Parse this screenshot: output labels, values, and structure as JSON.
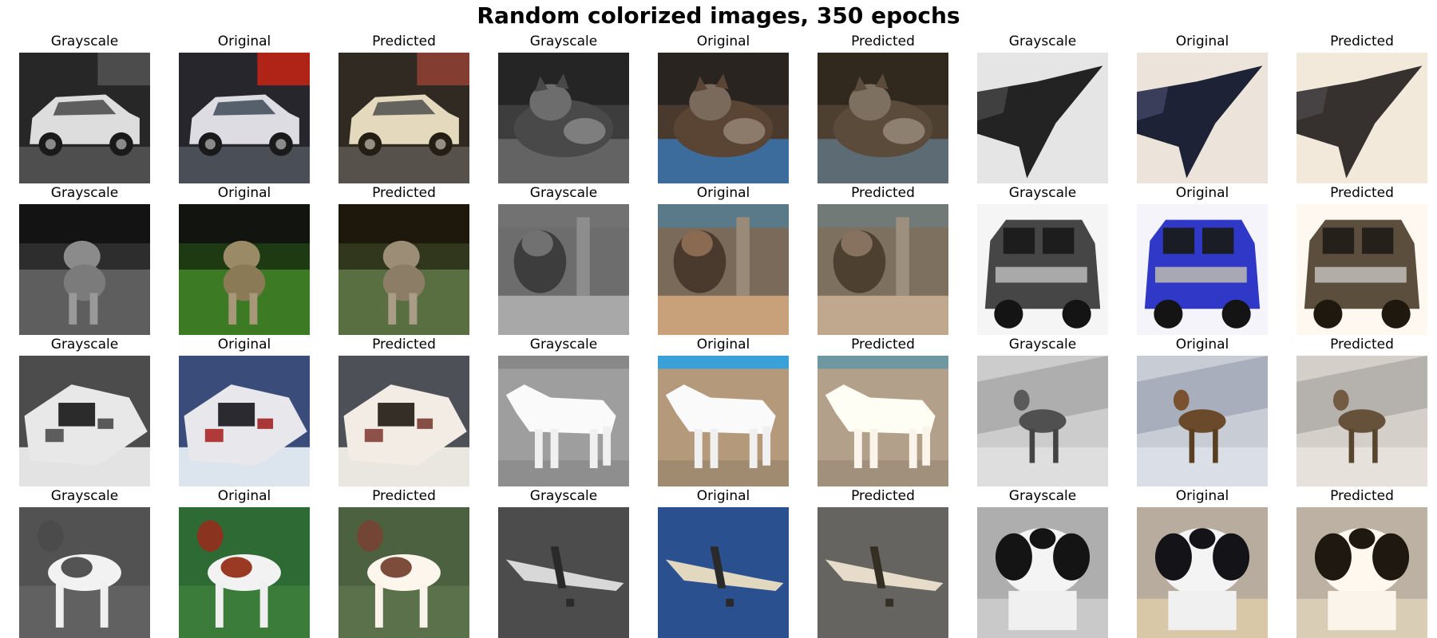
{
  "title": "Random colorized images, 350 epochs",
  "rows": [
    {
      "triplets": [
        {
          "subject": "car",
          "panels": [
            {
              "label": "Grayscale",
              "mode": "grayscale"
            },
            {
              "label": "Original",
              "mode": "original"
            },
            {
              "label": "Predicted",
              "mode": "predicted"
            }
          ]
        },
        {
          "subject": "cat",
          "panels": [
            {
              "label": "Grayscale",
              "mode": "grayscale"
            },
            {
              "label": "Original",
              "mode": "original"
            },
            {
              "label": "Predicted",
              "mode": "predicted"
            }
          ]
        },
        {
          "subject": "airplane",
          "panels": [
            {
              "label": "Grayscale",
              "mode": "grayscale"
            },
            {
              "label": "Original",
              "mode": "original"
            },
            {
              "label": "Predicted",
              "mode": "predicted"
            }
          ]
        }
      ]
    },
    {
      "triplets": [
        {
          "subject": "dog",
          "panels": [
            {
              "label": "Grayscale",
              "mode": "grayscale"
            },
            {
              "label": "Original",
              "mode": "original"
            },
            {
              "label": "Predicted",
              "mode": "predicted"
            }
          ]
        },
        {
          "subject": "cat",
          "panels": [
            {
              "label": "Grayscale",
              "mode": "grayscale"
            },
            {
              "label": "Original",
              "mode": "original"
            },
            {
              "label": "Predicted",
              "mode": "predicted"
            }
          ]
        },
        {
          "subject": "car",
          "panels": [
            {
              "label": "Grayscale",
              "mode": "grayscale"
            },
            {
              "label": "Original",
              "mode": "original"
            },
            {
              "label": "Predicted",
              "mode": "predicted"
            }
          ]
        }
      ]
    },
    {
      "triplets": [
        {
          "subject": "boat",
          "panels": [
            {
              "label": "Grayscale",
              "mode": "grayscale"
            },
            {
              "label": "Original",
              "mode": "original"
            },
            {
              "label": "Predicted",
              "mode": "predicted"
            }
          ]
        },
        {
          "subject": "horse",
          "panels": [
            {
              "label": "Grayscale",
              "mode": "grayscale"
            },
            {
              "label": "Original",
              "mode": "original"
            },
            {
              "label": "Predicted",
              "mode": "predicted"
            }
          ]
        },
        {
          "subject": "deer",
          "panels": [
            {
              "label": "Grayscale",
              "mode": "grayscale"
            },
            {
              "label": "Original",
              "mode": "original"
            },
            {
              "label": "Predicted",
              "mode": "predicted"
            }
          ]
        }
      ]
    },
    {
      "triplets": [
        {
          "subject": "dog",
          "panels": [
            {
              "label": "Grayscale",
              "mode": "grayscale"
            },
            {
              "label": "Original",
              "mode": "original"
            },
            {
              "label": "Predicted",
              "mode": "predicted"
            }
          ]
        },
        {
          "subject": "airplane",
          "panels": [
            {
              "label": "Grayscale",
              "mode": "grayscale"
            },
            {
              "label": "Original",
              "mode": "original"
            },
            {
              "label": "Predicted",
              "mode": "predicted"
            }
          ]
        },
        {
          "subject": "dog",
          "panels": [
            {
              "label": "Grayscale",
              "mode": "grayscale"
            },
            {
              "label": "Original",
              "mode": "original"
            },
            {
              "label": "Predicted",
              "mode": "predicted"
            }
          ]
        }
      ]
    }
  ]
}
